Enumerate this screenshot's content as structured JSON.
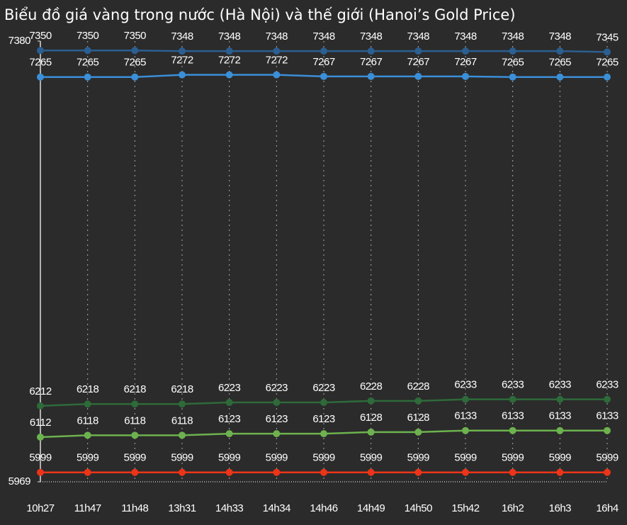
{
  "chart_data": {
    "type": "line",
    "title": "Biểu đồ giá vàng trong nước (Hà Nội) và thế giới (Hanoi’s Gold Price)",
    "categories": [
      "10h27",
      "11h47",
      "11h48",
      "13h31",
      "14h33",
      "14h34",
      "14h46",
      "14h49",
      "14h50",
      "15h42",
      "16h2",
      "16h3",
      "16h4"
    ],
    "series": [
      {
        "color": "#2b5f91",
        "values": [
          7350,
          7350,
          7350,
          7348,
          7348,
          7348,
          7348,
          7348,
          7348,
          7348,
          7348,
          7348,
          7345
        ]
      },
      {
        "color": "#3b8fd8",
        "values": [
          7265,
          7265,
          7265,
          7272,
          7272,
          7272,
          7267,
          7267,
          7267,
          7267,
          7265,
          7265,
          7265
        ]
      },
      {
        "color": "#2e6a3a",
        "values": [
          6212,
          6218,
          6218,
          6218,
          6223,
          6223,
          6223,
          6228,
          6228,
          6233,
          6233,
          6233,
          6233
        ]
      },
      {
        "color": "#6db24e",
        "values": [
          6112,
          6118,
          6118,
          6118,
          6123,
          6123,
          6123,
          6128,
          6128,
          6133,
          6133,
          6133,
          6133
        ]
      },
      {
        "color": "#ec3418",
        "values": [
          5999,
          5999,
          5999,
          5999,
          5999,
          5999,
          5999,
          5999,
          5999,
          5999,
          5999,
          5999,
          5999
        ]
      }
    ],
    "ylim": [
      5969,
      7380
    ],
    "yticks": [
      5969,
      7380
    ],
    "grid": true
  }
}
